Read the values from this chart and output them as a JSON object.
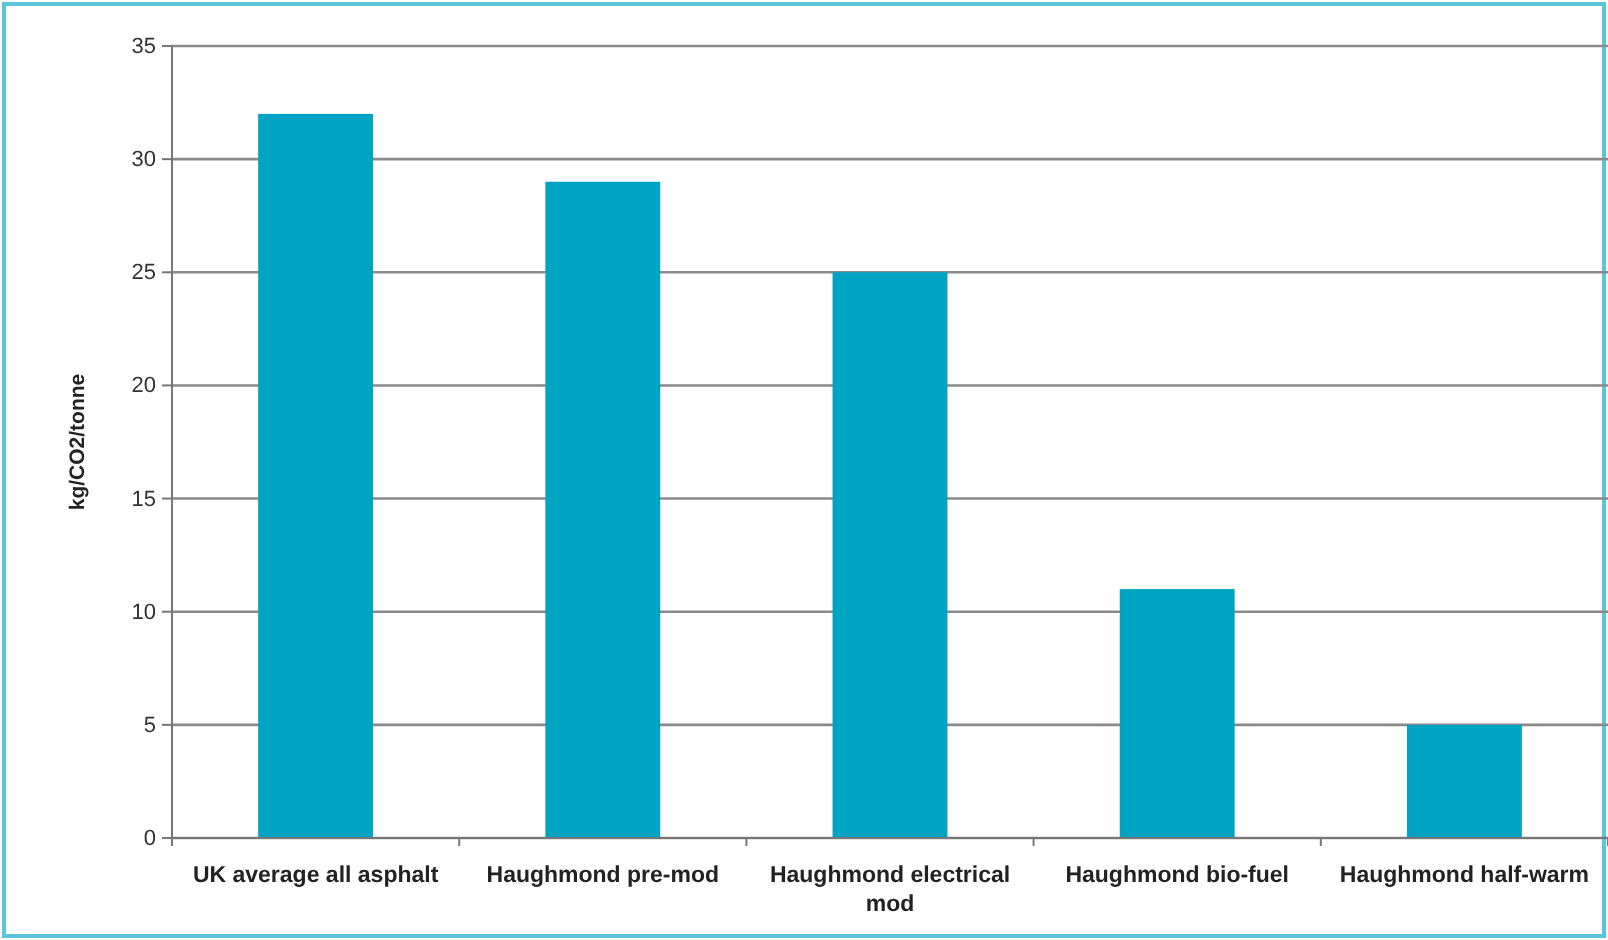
{
  "chart_data": {
    "type": "bar",
    "ylabel": "kg/CO2/tonne",
    "categories": [
      "UK average all asphalt",
      "Haughmond pre-mod",
      "Haughmond electrical mod",
      "Haughmond bio-fuel",
      "Haughmond half-warm"
    ],
    "values": [
      32,
      29,
      25,
      11,
      5
    ],
    "color": "#00a3c2",
    "ylim": [
      0,
      35
    ],
    "yticks": [
      0,
      5,
      10,
      15,
      20,
      25,
      30,
      35
    ],
    "grid": "y"
  }
}
